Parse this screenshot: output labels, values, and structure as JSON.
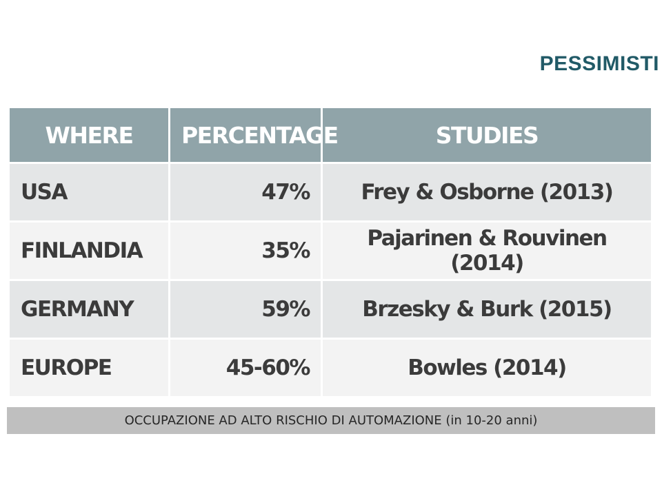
{
  "slide": {
    "title": "PESSIMISTI",
    "caption": "OCCUPAZIONE AD ALTO RISCHIO DI AUTOMAZIONE (in 10-20 anni)"
  },
  "table": {
    "headers": [
      "WHERE",
      "PERCENTAGE",
      "STUDIES"
    ],
    "rows": [
      {
        "where": "USA",
        "percentage": "47%",
        "studies": "Frey & Osborne (2013)"
      },
      {
        "where": "FINLANDIA",
        "percentage": "35%",
        "studies": "Pajarinen & Rouvinen (2014)"
      },
      {
        "where": "GERMANY",
        "percentage": "59%",
        "studies": "Brzesky & Burk (2015)"
      },
      {
        "where": "EUROPE",
        "percentage": "45-60%",
        "studies": "Bowles  (2014)"
      }
    ]
  },
  "colors": {
    "title": "#215a67",
    "header_bg": "#90a4a9",
    "highlight": "#e8332a",
    "caption_bg": "#bfbfbf"
  }
}
